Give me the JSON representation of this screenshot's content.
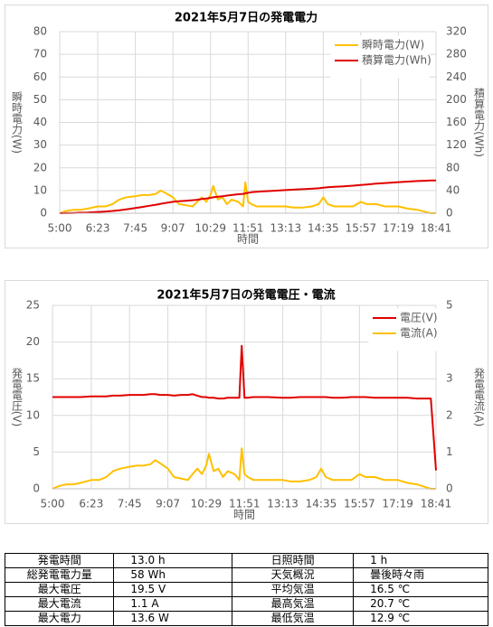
{
  "chart_data": [
    {
      "type": "line",
      "title": "2021年5月7日の発電電力",
      "x_label": "時間",
      "y_label": "瞬時電力(W)",
      "y2_label": "積算電力(Wh)",
      "x": [
        300,
        315,
        330,
        345,
        360,
        383,
        400,
        415,
        430,
        445,
        465,
        480,
        495,
        510,
        520,
        530,
        547,
        560,
        575,
        590,
        600,
        610,
        620,
        629,
        635,
        645,
        655,
        665,
        675,
        690,
        700,
        705,
        711,
        718,
        730,
        745,
        760,
        793,
        810,
        830,
        850,
        865,
        875,
        885,
        900,
        920,
        940,
        957,
        970,
        990,
        1010,
        1039,
        1060,
        1080,
        1100,
        1110,
        1121
      ],
      "xlim": [
        300,
        1121
      ],
      "xticks": [
        {
          "value": 300,
          "label": "5:00"
        },
        {
          "value": 383,
          "label": "6:23"
        },
        {
          "value": 465,
          "label": "7:45"
        },
        {
          "value": 547,
          "label": "9:07"
        },
        {
          "value": 629,
          "label": "10:29"
        },
        {
          "value": 711,
          "label": "11:51"
        },
        {
          "value": 793,
          "label": "13:13"
        },
        {
          "value": 875,
          "label": "14:35"
        },
        {
          "value": 957,
          "label": "15:57"
        },
        {
          "value": 1039,
          "label": "17:19"
        },
        {
          "value": 1121,
          "label": "18:41"
        }
      ],
      "ylim": [
        0,
        80
      ],
      "yticks": [
        0,
        10,
        20,
        30,
        40,
        50,
        60,
        70,
        80
      ],
      "y2lim": [
        0,
        320
      ],
      "y2ticks": [
        0,
        40,
        80,
        120,
        160,
        200,
        240,
        280,
        320
      ],
      "grid": true,
      "legend": "upper right",
      "series": [
        {
          "name": "瞬時電力(W)",
          "color": "#ffc000",
          "values": [
            0,
            1,
            1.5,
            1.5,
            2,
            3,
            3,
            4,
            6,
            7,
            7.5,
            8,
            8,
            8.5,
            10,
            9,
            7,
            4,
            3.5,
            3,
            5,
            7,
            5,
            8,
            12,
            6,
            7,
            4,
            6,
            5,
            3,
            13.6,
            5,
            4,
            3,
            3,
            3,
            3,
            2.5,
            2.5,
            3,
            4,
            7,
            4,
            3,
            3,
            3,
            5,
            4,
            4,
            3,
            3,
            2,
            1.5,
            0.5,
            0,
            0
          ]
        },
        {
          "name": "積算電力(Wh)",
          "color": "#e00000",
          "axis": "y2",
          "values": [
            0,
            0.2,
            0.5,
            0.9,
            1.3,
            2.2,
            3,
            4,
            5.2,
            6.8,
            9,
            11,
            13,
            15,
            16.5,
            18,
            20,
            21,
            22,
            23,
            23.8,
            25,
            26,
            27,
            28,
            29,
            30,
            31,
            32,
            33.5,
            34,
            35,
            36,
            37,
            37.8,
            38.5,
            39.2,
            40.8,
            41.5,
            42.3,
            43.2,
            44,
            45,
            45.8,
            46.5,
            47.5,
            48.5,
            49.8,
            50.7,
            52,
            53.2,
            54.8,
            55.8,
            56.6,
            57.3,
            57.6,
            57.8
          ]
        }
      ]
    },
    {
      "type": "line",
      "title": "2021年5月7日の発電電圧・電流",
      "x_label": "時間",
      "y_label": "発電電圧(V)",
      "y2_label": "発電電流(A)",
      "x": [
        300,
        315,
        330,
        345,
        360,
        383,
        400,
        415,
        430,
        445,
        465,
        480,
        495,
        510,
        520,
        530,
        547,
        560,
        575,
        590,
        600,
        610,
        620,
        629,
        635,
        645,
        655,
        665,
        675,
        690,
        700,
        705,
        711,
        718,
        730,
        745,
        760,
        793,
        810,
        830,
        850,
        865,
        875,
        885,
        900,
        920,
        940,
        957,
        970,
        990,
        1010,
        1039,
        1060,
        1080,
        1100,
        1110,
        1121
      ],
      "xlim": [
        300,
        1121
      ],
      "xticks": [
        {
          "value": 300,
          "label": "5:00"
        },
        {
          "value": 383,
          "label": "6:23"
        },
        {
          "value": 465,
          "label": "7:45"
        },
        {
          "value": 547,
          "label": "9:07"
        },
        {
          "value": 629,
          "label": "10:29"
        },
        {
          "value": 711,
          "label": "11:51"
        },
        {
          "value": 793,
          "label": "13:13"
        },
        {
          "value": 875,
          "label": "14:35"
        },
        {
          "value": 957,
          "label": "15:57"
        },
        {
          "value": 1039,
          "label": "17:19"
        },
        {
          "value": 1121,
          "label": "18:41"
        }
      ],
      "ylim": [
        0,
        25
      ],
      "yticks": [
        0,
        5,
        10,
        15,
        20,
        25
      ],
      "y2lim": [
        0,
        5
      ],
      "y2ticks": [
        0,
        1,
        2,
        3,
        4,
        5
      ],
      "grid": true,
      "legend": "upper right",
      "series": [
        {
          "name": "電圧(V)",
          "color": "#e00000",
          "values": [
            12.5,
            12.5,
            12.5,
            12.5,
            12.5,
            12.6,
            12.6,
            12.6,
            12.7,
            12.7,
            12.8,
            12.8,
            12.8,
            12.9,
            12.9,
            12.8,
            12.8,
            12.7,
            12.8,
            12.8,
            12.9,
            12.7,
            12.5,
            12.5,
            12.4,
            12.4,
            12.3,
            12.3,
            12.4,
            12.4,
            12.4,
            19.5,
            12.4,
            12.4,
            12.5,
            12.5,
            12.5,
            12.4,
            12.4,
            12.5,
            12.5,
            12.5,
            12.5,
            12.5,
            12.4,
            12.4,
            12.5,
            12.5,
            12.5,
            12.4,
            12.4,
            12.4,
            12.4,
            12.3,
            12.3,
            12.3,
            2.5
          ]
        },
        {
          "name": "電流(A)",
          "color": "#ffc000",
          "axis": "y2",
          "values": [
            0,
            0.08,
            0.12,
            0.12,
            0.16,
            0.24,
            0.24,
            0.32,
            0.48,
            0.55,
            0.6,
            0.63,
            0.63,
            0.67,
            0.78,
            0.7,
            0.55,
            0.32,
            0.28,
            0.24,
            0.4,
            0.55,
            0.4,
            0.63,
            0.95,
            0.48,
            0.55,
            0.32,
            0.48,
            0.4,
            0.24,
            1.1,
            0.4,
            0.32,
            0.24,
            0.24,
            0.24,
            0.24,
            0.2,
            0.2,
            0.24,
            0.32,
            0.55,
            0.32,
            0.24,
            0.24,
            0.24,
            0.4,
            0.32,
            0.32,
            0.24,
            0.24,
            0.16,
            0.12,
            0.04,
            0,
            0
          ]
        }
      ]
    }
  ],
  "table": {
    "rows": [
      [
        "発電時間",
        "13.0 h",
        "日照時間",
        "1 h"
      ],
      [
        "総発電電力量",
        "58 Wh",
        "天気概況",
        "曇後時々雨"
      ],
      [
        "最大電圧",
        "19.5 V",
        "平均気温",
        "16.5 ℃"
      ],
      [
        "最大電流",
        "1.1 A",
        "最高気温",
        "20.7 ℃"
      ],
      [
        "最大電力",
        "13.6 W",
        "最低気温",
        "12.9 ℃"
      ]
    ]
  }
}
